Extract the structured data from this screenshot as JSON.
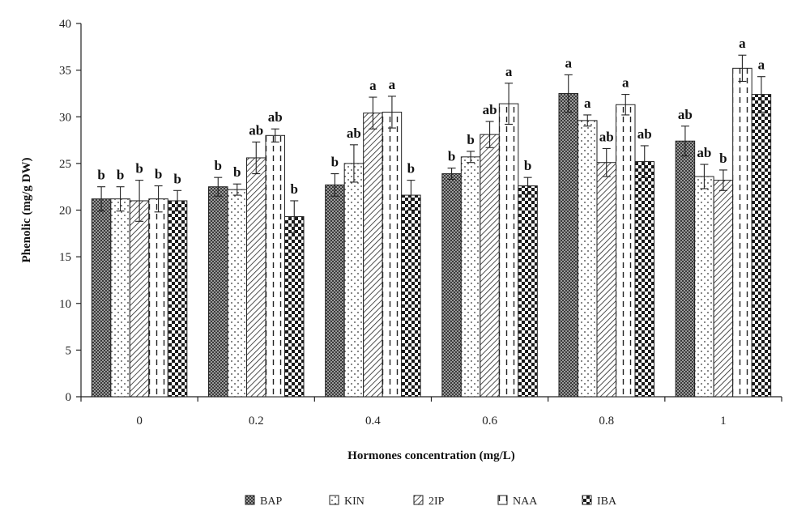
{
  "chart_data": {
    "type": "bar",
    "title": "",
    "xlabel": "Hormones concentration (mg/L)",
    "ylabel": "Phenolic (mg/g DW)",
    "ylim": [
      0,
      40
    ],
    "yticks": [
      0,
      5,
      10,
      15,
      20,
      25,
      30,
      35,
      40
    ],
    "categories": [
      "0",
      "0.2",
      "0.4",
      "0.6",
      "0.8",
      "1"
    ],
    "legend_position": "bottom",
    "grid": false,
    "series": [
      {
        "name": "BAP",
        "pattern": "dense-crosshatch",
        "values": [
          21.2,
          22.5,
          22.7,
          23.9,
          32.5,
          27.4
        ],
        "errors": [
          1.3,
          1.0,
          1.2,
          0.6,
          2.0,
          1.6
        ],
        "labels": [
          "b",
          "b",
          "b",
          "b",
          "a",
          "ab"
        ]
      },
      {
        "name": "KIN",
        "pattern": "dots",
        "values": [
          21.2,
          22.2,
          25.0,
          25.7,
          29.6,
          23.6
        ],
        "errors": [
          1.3,
          0.6,
          2.0,
          0.6,
          0.6,
          1.3
        ],
        "labels": [
          "b",
          "b",
          "ab",
          "b",
          "a",
          "ab"
        ]
      },
      {
        "name": "2IP",
        "pattern": "diagonal",
        "values": [
          21.0,
          25.6,
          30.4,
          28.1,
          25.1,
          23.2
        ],
        "errors": [
          2.2,
          1.7,
          1.7,
          1.4,
          1.5,
          1.1
        ],
        "labels": [
          "b",
          "ab",
          "a",
          "ab",
          "ab",
          "b"
        ]
      },
      {
        "name": "NAA",
        "pattern": "vertical-dashes",
        "values": [
          21.2,
          28.0,
          30.5,
          31.4,
          31.3,
          35.2
        ],
        "errors": [
          1.4,
          0.7,
          1.7,
          2.2,
          1.1,
          1.4
        ],
        "labels": [
          "b",
          "ab",
          "a",
          "a",
          "a",
          "a"
        ]
      },
      {
        "name": "IBA",
        "pattern": "checker",
        "values": [
          21.0,
          19.3,
          21.6,
          22.6,
          25.2,
          32.4
        ],
        "errors": [
          1.1,
          1.7,
          1.6,
          0.9,
          1.7,
          1.9
        ],
        "labels": [
          "b",
          "b",
          "b",
          "b",
          "ab",
          "a"
        ]
      }
    ]
  }
}
